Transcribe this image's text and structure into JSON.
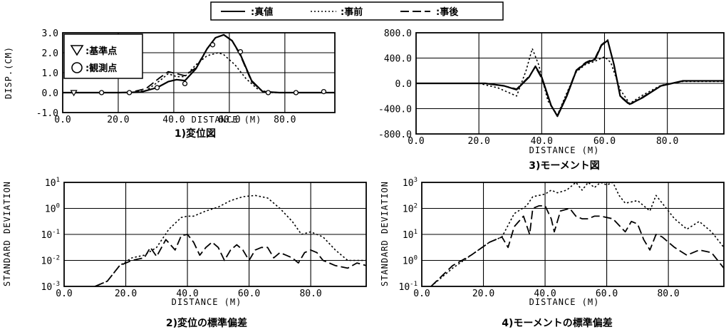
{
  "legend": {
    "items": [
      {
        "label": ":真値",
        "style": "solid"
      },
      {
        "label": ":事前",
        "style": "dotted"
      },
      {
        "label": ":事後",
        "style": "dashed"
      }
    ]
  },
  "chart_data": [
    {
      "id": "p1",
      "type": "line",
      "caption": "1)変位図",
      "xlabel": "DISTANCE (M)",
      "ylabel": "DISP.(CM)",
      "xlim": [
        0,
        98
      ],
      "ylim": [
        -1,
        3
      ],
      "scale": "linear",
      "x_ticks": [
        0,
        20,
        40,
        60,
        80
      ],
      "x_tick_labels": [
        "0.0",
        "20.0",
        "40.0",
        "60.0",
        "80.0"
      ],
      "y_ticks": [
        -1,
        0,
        1,
        2,
        3
      ],
      "y_tick_labels": [
        "-1.0",
        "0.0",
        "1.0",
        "2.0",
        "3.0"
      ],
      "grid": true,
      "inset_legend": [
        {
          "symbol": "triangle",
          "label": "▽:基準点",
          "text": ":基準点"
        },
        {
          "symbol": "circle",
          "label": "○:観測点",
          "text": ":観測点"
        }
      ],
      "series": [
        {
          "style": "solid",
          "x": [
            0,
            20,
            28,
            34,
            38,
            41,
            44,
            48,
            52,
            55,
            58,
            61,
            64,
            68,
            72,
            78,
            98
          ],
          "y": [
            0,
            0,
            0.02,
            0.25,
            0.55,
            0.65,
            0.6,
            1.2,
            2.2,
            2.75,
            2.9,
            2.6,
            1.9,
            0.6,
            0.05,
            0,
            0
          ]
        },
        {
          "style": "dotted",
          "x": [
            0,
            24,
            30,
            35,
            38,
            41,
            44,
            48,
            52,
            56,
            58,
            62,
            66,
            70,
            74,
            98
          ],
          "y": [
            0,
            0,
            0.1,
            0.6,
            0.95,
            0.8,
            0.8,
            1.4,
            1.85,
            2.0,
            1.9,
            1.4,
            0.7,
            0.2,
            0,
            0
          ]
        },
        {
          "style": "dashed",
          "x": [
            0,
            24,
            30,
            35,
            38,
            41,
            44,
            48,
            52,
            55,
            58,
            61,
            64,
            68,
            72,
            78,
            98
          ],
          "y": [
            0,
            0,
            0.2,
            0.75,
            1.05,
            0.95,
            0.85,
            1.25,
            2.2,
            2.75,
            2.9,
            2.6,
            1.85,
            0.55,
            0.05,
            0,
            0
          ]
        }
      ],
      "markers": {
        "triangle": [
          {
            "x": 4,
            "y": 0
          }
        ],
        "circle": [
          {
            "x": 14,
            "y": 0
          },
          {
            "x": 24,
            "y": 0
          },
          {
            "x": 34,
            "y": 0.25
          },
          {
            "x": 44,
            "y": 0.45
          },
          {
            "x": 54,
            "y": 2.4
          },
          {
            "x": 64,
            "y": 2.05
          },
          {
            "x": 74,
            "y": 0
          },
          {
            "x": 84,
            "y": 0
          },
          {
            "x": 94,
            "y": 0.05
          }
        ]
      }
    },
    {
      "id": "p3",
      "type": "line",
      "caption": "3)モーメント図",
      "xlabel": "DISTANCE (M)",
      "ylabel": "",
      "xlim": [
        0,
        98
      ],
      "ylim": [
        -800,
        800
      ],
      "scale": "linear",
      "x_ticks": [
        0,
        20,
        40,
        60,
        80
      ],
      "x_tick_labels": [
        "0.0",
        "20.0",
        "40.0",
        "60.0",
        "80.0"
      ],
      "y_ticks": [
        -800,
        -400,
        0,
        400,
        800
      ],
      "y_tick_labels": [
        "-800.0",
        "-400.0",
        "0.0",
        "400.0",
        "800.0"
      ],
      "grid": true,
      "series": [
        {
          "style": "solid",
          "x": [
            0,
            22,
            28,
            32,
            36,
            38,
            40,
            43,
            45,
            48,
            51,
            54,
            57,
            59,
            61,
            63,
            65,
            68,
            72,
            78,
            85,
            98
          ],
          "y": [
            0,
            0,
            -40,
            -100,
            100,
            270,
            100,
            -350,
            -520,
            -200,
            200,
            320,
            380,
            600,
            680,
            300,
            -200,
            -330,
            -230,
            -40,
            40,
            40
          ]
        },
        {
          "style": "dotted",
          "x": [
            0,
            20,
            26,
            32,
            35,
            37,
            39,
            42,
            45,
            48,
            51,
            54,
            57,
            60,
            62,
            65,
            68,
            72,
            78,
            85,
            98
          ],
          "y": [
            0,
            0,
            -70,
            -200,
            200,
            550,
            300,
            -280,
            -500,
            -150,
            180,
            300,
            350,
            420,
            330,
            -100,
            -320,
            -190,
            -30,
            30,
            30
          ]
        },
        {
          "style": "dashed",
          "x": [
            0,
            22,
            28,
            32,
            36,
            38,
            40,
            43,
            45,
            48,
            51,
            54,
            57,
            59,
            61,
            63,
            65,
            68,
            72,
            78,
            85,
            98
          ],
          "y": [
            0,
            0,
            -40,
            -90,
            110,
            260,
            80,
            -360,
            -510,
            -180,
            210,
            330,
            400,
            610,
            690,
            290,
            -210,
            -340,
            -220,
            -40,
            40,
            40
          ]
        }
      ]
    },
    {
      "id": "p2",
      "type": "line",
      "caption": "2)変位の標準偏差",
      "xlabel": "DISTANCE (M)",
      "ylabel": "STANDARD DEVIATION",
      "xlim": [
        0,
        98
      ],
      "ylim": [
        -3,
        1
      ],
      "scale": "log10",
      "x_ticks": [
        0,
        20,
        40,
        60,
        80
      ],
      "x_tick_labels": [
        "0.0",
        "20.0",
        "40.0",
        "60.0",
        "80.0"
      ],
      "y_ticks": [
        -3,
        -2,
        -1,
        0,
        1
      ],
      "y_tick_labels": [
        {
          "base": "10",
          "exp": "-3"
        },
        {
          "base": "10",
          "exp": "-2"
        },
        {
          "base": "10",
          "exp": "-1"
        },
        {
          "base": "10",
          "exp": "0"
        },
        {
          "base": "10",
          "exp": "1"
        }
      ],
      "grid": true,
      "series": [
        {
          "style": "dotted",
          "x": [
            10,
            14,
            18,
            22,
            26,
            30,
            34,
            38,
            40,
            42,
            46,
            50,
            54,
            58,
            62,
            66,
            70,
            74,
            77,
            80,
            84,
            88,
            92,
            98
          ],
          "y": [
            -3,
            -2.8,
            -2.2,
            -1.9,
            -1.8,
            -1.5,
            -0.8,
            -0.35,
            -0.3,
            -0.3,
            -0.1,
            0.05,
            0.3,
            0.45,
            0.5,
            0.4,
            0,
            -0.5,
            -1,
            -0.9,
            -1.1,
            -1.6,
            -2,
            -2
          ]
        },
        {
          "style": "dashed",
          "x": [
            10,
            14,
            18,
            22,
            26,
            28,
            30,
            33,
            36,
            38,
            40,
            42,
            44,
            46,
            48,
            50,
            52,
            54,
            56,
            58,
            60,
            62,
            64,
            66,
            68,
            70,
            72,
            74,
            76,
            78,
            80,
            82,
            84,
            88,
            92,
            95,
            98
          ],
          "y": [
            -3,
            -2.8,
            -2.2,
            -2,
            -1.9,
            -1.5,
            -1.85,
            -1.2,
            -1.6,
            -1.05,
            -1.0,
            -1.3,
            -1.8,
            -1.5,
            -1.3,
            -1.5,
            -2.0,
            -1.6,
            -1.4,
            -1.6,
            -2.0,
            -1.6,
            -1.5,
            -1.5,
            -1.9,
            -1.7,
            -1.8,
            -1.9,
            -2.1,
            -1.7,
            -1.6,
            -1.7,
            -2.0,
            -2.2,
            -2.3,
            -2.1,
            -2.2
          ]
        }
      ]
    },
    {
      "id": "p4",
      "type": "line",
      "caption": "4)モーメントの標準偏差",
      "xlabel": "DISTANCE (M)",
      "ylabel": "STANDARD DEVIATION",
      "xlim": [
        0,
        98
      ],
      "ylim": [
        -1,
        3
      ],
      "scale": "log10",
      "x_ticks": [
        0,
        20,
        40,
        60,
        80
      ],
      "x_tick_labels": [
        "0.0",
        "20.0",
        "40.0",
        "60.0",
        "80.0"
      ],
      "y_ticks": [
        -1,
        0,
        1,
        2,
        3
      ],
      "y_tick_labels": [
        {
          "base": "10",
          "exp": "-1"
        },
        {
          "base": "10",
          "exp": "0"
        },
        {
          "base": "10",
          "exp": "1"
        },
        {
          "base": "10",
          "exp": "2"
        },
        {
          "base": "10",
          "exp": "3"
        }
      ],
      "grid": true,
      "series": [
        {
          "style": "dotted",
          "x": [
            3,
            10,
            16,
            22,
            26,
            30,
            34,
            36,
            38,
            40,
            42,
            44,
            47,
            50,
            52,
            54,
            56,
            58,
            60,
            62,
            64,
            66,
            70,
            74,
            76,
            78,
            82,
            86,
            90,
            94,
            98
          ],
          "y": [
            -1,
            -0.3,
            0.2,
            0.7,
            0.9,
            1.8,
            2.1,
            2.45,
            2.5,
            2.55,
            2.7,
            2.6,
            2.7,
            3.0,
            2.7,
            3.0,
            2.8,
            3.0,
            2.9,
            3.0,
            2.5,
            2.2,
            2.3,
            1.9,
            2.5,
            2.2,
            1.6,
            1.2,
            1.5,
            1.1,
            0.5
          ]
        },
        {
          "style": "dashed",
          "x": [
            3,
            10,
            16,
            22,
            26,
            28,
            30,
            33,
            35,
            36,
            38,
            40,
            42,
            43,
            45,
            48,
            50,
            52,
            54,
            56,
            58,
            62,
            66,
            68,
            70,
            72,
            74,
            76,
            78,
            82,
            86,
            90,
            94,
            98
          ],
          "y": [
            -1,
            -0.2,
            0.2,
            0.7,
            0.9,
            0.5,
            1.3,
            1.7,
            1.0,
            2.0,
            2.1,
            2.1,
            1.6,
            1.1,
            1.9,
            2.0,
            1.7,
            1.6,
            1.6,
            1.7,
            1.7,
            1.6,
            1.1,
            1.5,
            1.4,
            0.8,
            0.4,
            1.0,
            0.9,
            0.5,
            0.2,
            0.4,
            0.3,
            -0.3
          ]
        }
      ]
    }
  ]
}
